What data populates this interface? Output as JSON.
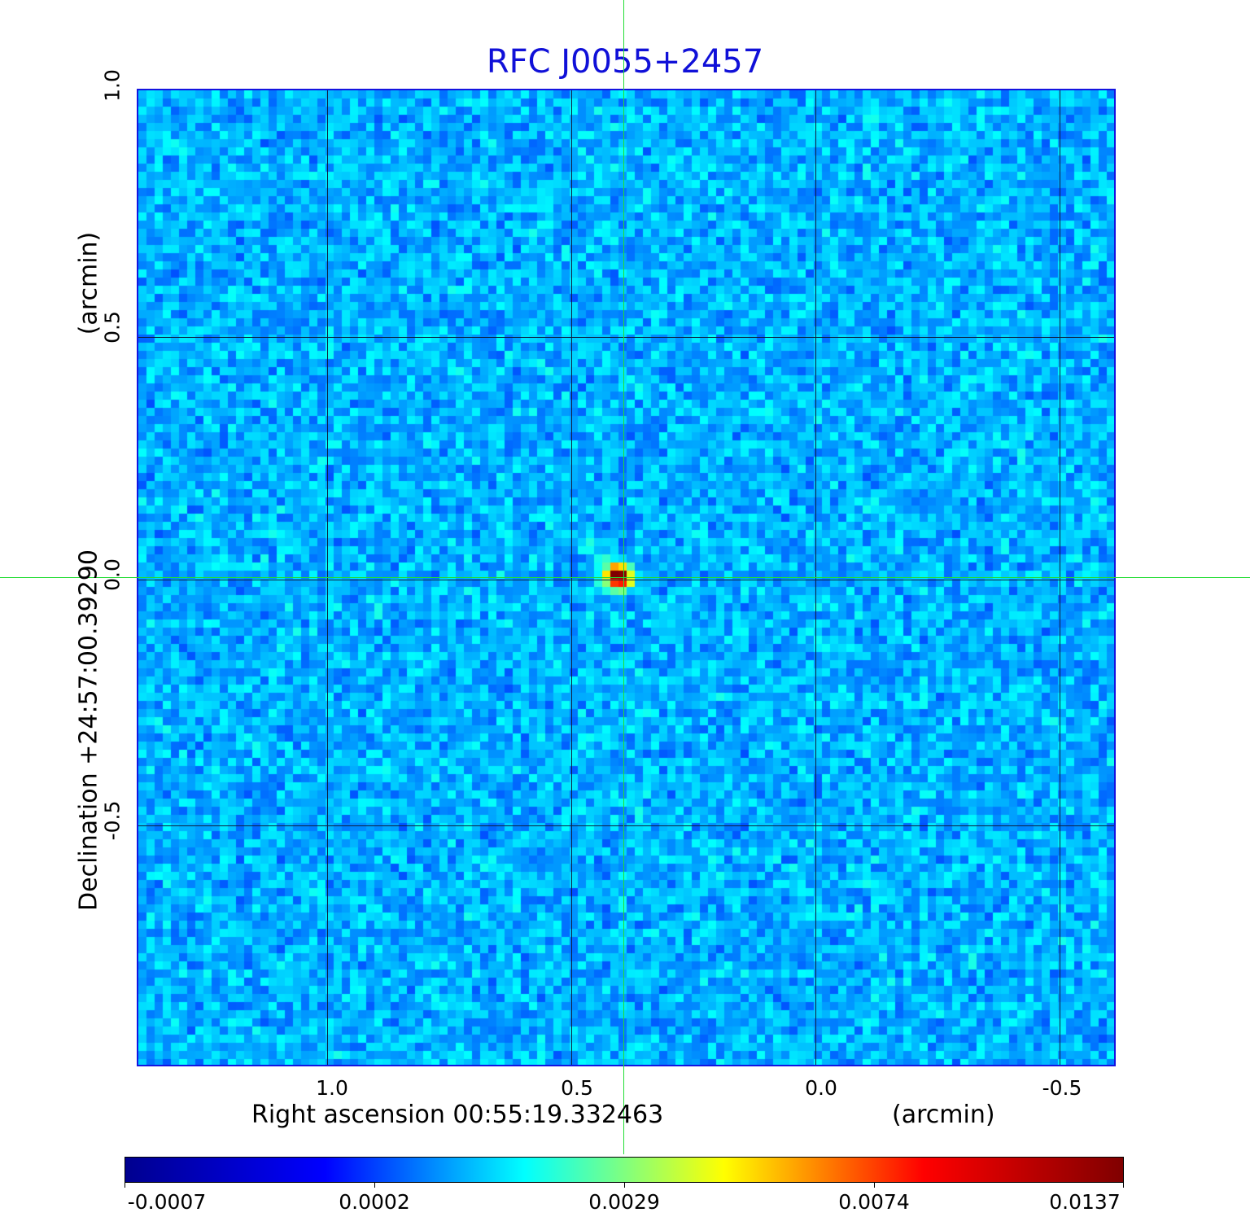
{
  "chart_data": {
    "type": "heatmap",
    "title": "RFC J0055+2457",
    "xlabel": "Right ascension  00:55:19.332463",
    "xlabel_unit": "(arcmin)",
    "ylabel": "Declination  +24:57:00.39290",
    "ylabel_unit": "(arcmin)",
    "x_ticks": [
      "1.0",
      "0.5",
      "0.0",
      "-0.5"
    ],
    "y_ticks": [
      "1.0",
      "0.5",
      "0.0",
      "-0.5"
    ],
    "xlim": [
      1.39,
      -0.62
    ],
    "ylim": [
      -1.0,
      1.0
    ],
    "grid": true,
    "source_position": [
      0.4,
      0.0
    ],
    "source_peak": 0.0137,
    "colorbar": {
      "labels": [
        "-0.0007",
        "0.0002",
        "0.0029",
        "0.0074",
        "0.0137"
      ],
      "colormap": "jet",
      "colors": [
        "#00008f",
        "#0000ff",
        "#00ffff",
        "#ffff00",
        "#ff0000",
        "#800000"
      ]
    }
  }
}
